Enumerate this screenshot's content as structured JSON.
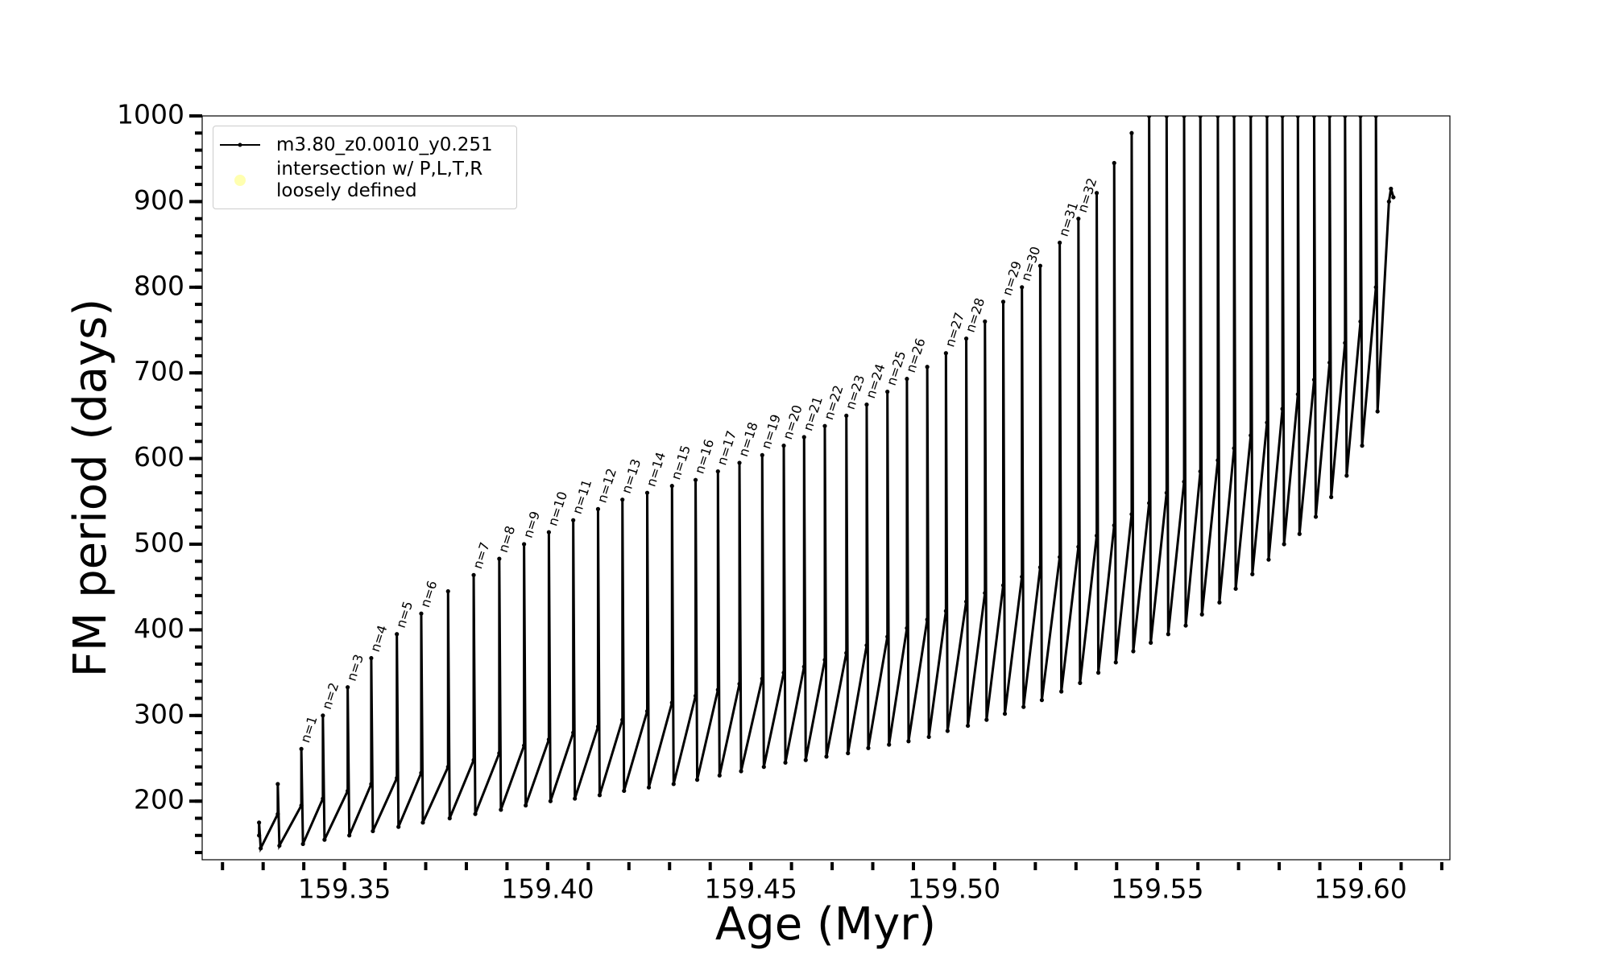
{
  "chart_data": {
    "type": "line",
    "xlabel": "Age (Myr)",
    "ylabel": "FM period (days)",
    "xlim": [
      159.315,
      159.622
    ],
    "ylim": [
      131.6,
      1000
    ],
    "xticks": [
      {
        "value": 159.35,
        "label": "159.35"
      },
      {
        "value": 159.4,
        "label": "159.40"
      },
      {
        "value": 159.45,
        "label": "159.45"
      },
      {
        "value": 159.5,
        "label": "159.50"
      },
      {
        "value": 159.55,
        "label": "159.55"
      },
      {
        "value": 159.6,
        "label": "159.60"
      }
    ],
    "xminorticks": [
      159.32,
      159.33,
      159.34,
      159.35,
      159.36,
      159.37,
      159.38,
      159.39,
      159.4,
      159.41,
      159.42,
      159.43,
      159.44,
      159.45,
      159.46,
      159.47,
      159.48,
      159.49,
      159.5,
      159.51,
      159.52,
      159.53,
      159.54,
      159.55,
      159.56,
      159.57,
      159.58,
      159.59,
      159.6,
      159.61,
      159.62
    ],
    "yticks": [
      200,
      300,
      400,
      500,
      600,
      700,
      800,
      900,
      1000
    ],
    "yminorticks": [
      140,
      160,
      180,
      200,
      220,
      240,
      260,
      280,
      300,
      320,
      340,
      360,
      380,
      400,
      420,
      440,
      460,
      480,
      500,
      520,
      540,
      560,
      580,
      600,
      620,
      640,
      660,
      680,
      700,
      720,
      740,
      760,
      780,
      800,
      820,
      840,
      860,
      880,
      900,
      920,
      940,
      960,
      980,
      1000
    ],
    "series": [
      {
        "name": "m3.80_z0.0010_y0.251",
        "color": "#000000",
        "marker": true,
        "x": [
          159.329,
          159.329,
          159.3294,
          159.3336,
          159.3336,
          159.334,
          159.3394,
          159.3394,
          159.3398,
          159.3447,
          159.3447,
          159.3451,
          159.3508,
          159.3508,
          159.3512,
          159.3566,
          159.3566,
          159.357,
          159.3629,
          159.3629,
          159.3633,
          159.3689,
          159.3689,
          159.3693,
          159.3755,
          159.3755,
          159.3759,
          159.3818,
          159.3818,
          159.3822,
          159.3881,
          159.3881,
          159.3885,
          159.3942,
          159.3942,
          159.3946,
          159.4003,
          159.4003,
          159.4007,
          159.4063,
          159.4063,
          159.4067,
          159.4124,
          159.4124,
          159.4128,
          159.4184,
          159.4184,
          159.4188,
          159.4245,
          159.4245,
          159.4249,
          159.4306,
          159.4306,
          159.431,
          159.4364,
          159.4364,
          159.4368,
          159.4419,
          159.4419,
          159.4423,
          159.4472,
          159.4472,
          159.4476,
          159.4528,
          159.4528,
          159.4532,
          159.4581,
          159.4581,
          159.4585,
          159.4631,
          159.4631,
          159.4635,
          159.4682,
          159.4682,
          159.4686,
          159.4735,
          159.4735,
          159.4739,
          159.4785,
          159.4785,
          159.4789,
          159.4836,
          159.4836,
          159.484,
          159.4884,
          159.4884,
          159.4888,
          159.4934,
          159.4934,
          159.4938,
          159.498,
          159.498,
          159.4984,
          159.503,
          159.503,
          159.5034,
          159.5076,
          159.5076,
          159.508,
          159.5121,
          159.5121,
          159.5125,
          159.5167,
          159.5167,
          159.5171,
          159.5212,
          159.5212,
          159.5216,
          159.526,
          159.526,
          159.5264,
          159.5306,
          159.5306,
          159.531,
          159.5351,
          159.5351,
          159.5355,
          159.5394,
          159.5394,
          159.5398,
          159.5437,
          159.5437,
          159.5441,
          159.548,
          159.548,
          159.5484,
          159.5523,
          159.5523,
          159.5527,
          159.5566,
          159.5566,
          159.557,
          159.5606,
          159.5606,
          159.561,
          159.5649,
          159.5649,
          159.5653,
          159.5689,
          159.5689,
          159.5693,
          159.573,
          159.573,
          159.5734,
          159.577,
          159.577,
          159.5774,
          159.5808,
          159.5808,
          159.5812,
          159.5846,
          159.5846,
          159.585,
          159.5886,
          159.5886,
          159.589,
          159.5924,
          159.5924,
          159.5928,
          159.5962,
          159.5962,
          159.5966,
          159.6,
          159.6,
          159.6004,
          159.6038,
          159.6038,
          159.6042,
          159.607,
          159.6075,
          159.6081
        ],
        "values": [
          160,
          175,
          145,
          185,
          220,
          148,
          195,
          261,
          150,
          203,
          300,
          155,
          212,
          333,
          160,
          220,
          367,
          165,
          227,
          395,
          170,
          233,
          419,
          175,
          240,
          445,
          180,
          248,
          464,
          185,
          256,
          483,
          190,
          265,
          500,
          195,
          272,
          514,
          200,
          280,
          528,
          203,
          287,
          541,
          207,
          295,
          552,
          212,
          305,
          560,
          216,
          315,
          568,
          220,
          323,
          575,
          225,
          330,
          585,
          230,
          337,
          595,
          235,
          343,
          604,
          240,
          350,
          615,
          245,
          357,
          625,
          248,
          365,
          638,
          252,
          373,
          650,
          256,
          382,
          663,
          262,
          392,
          678,
          266,
          402,
          693,
          270,
          412,
          707,
          275,
          422,
          723,
          282,
          433,
          740,
          288,
          443,
          760,
          295,
          452,
          783,
          302,
          462,
          800,
          310,
          473,
          825,
          318,
          485,
          852,
          328,
          497,
          880,
          338,
          510,
          910,
          350,
          522,
          945,
          362,
          535,
          980,
          375,
          548,
          1000,
          385,
          560,
          1000,
          395,
          573,
          1000,
          405,
          585,
          1000,
          418,
          598,
          1000,
          432,
          612,
          1000,
          448,
          627,
          1000,
          465,
          642,
          1000,
          482,
          658,
          1000,
          500,
          675,
          1000,
          512,
          692,
          1000,
          532,
          712,
          1000,
          555,
          735,
          1000,
          580,
          760,
          1000,
          615,
          800,
          1000,
          655,
          900,
          915,
          905
        ]
      },
      {
        "name": "intersection w/ P,L,T,R\nloosely defined",
        "color": "#ffffb0",
        "type": "scatter",
        "x": [],
        "values": []
      }
    ],
    "annotations": [
      {
        "text": "n=1",
        "x": 159.3394,
        "y": 261
      },
      {
        "text": "n=2",
        "x": 159.3447,
        "y": 300
      },
      {
        "text": "n=3",
        "x": 159.3508,
        "y": 333
      },
      {
        "text": "n=4",
        "x": 159.3566,
        "y": 367
      },
      {
        "text": "n=5",
        "x": 159.3629,
        "y": 395
      },
      {
        "text": "n=6",
        "x": 159.3689,
        "y": 419
      },
      {
        "text": "n=7",
        "x": 159.3818,
        "y": 464
      },
      {
        "text": "n=8",
        "x": 159.3881,
        "y": 483
      },
      {
        "text": "n=9",
        "x": 159.3942,
        "y": 500
      },
      {
        "text": "n=10",
        "x": 159.4003,
        "y": 514
      },
      {
        "text": "n=11",
        "x": 159.4063,
        "y": 528
      },
      {
        "text": "n=12",
        "x": 159.4124,
        "y": 541
      },
      {
        "text": "n=13",
        "x": 159.4184,
        "y": 552
      },
      {
        "text": "n=14",
        "x": 159.4245,
        "y": 560
      },
      {
        "text": "n=15",
        "x": 159.4306,
        "y": 568
      },
      {
        "text": "n=16",
        "x": 159.4364,
        "y": 575
      },
      {
        "text": "n=17",
        "x": 159.4419,
        "y": 585
      },
      {
        "text": "n=18",
        "x": 159.4472,
        "y": 595
      },
      {
        "text": "n=19",
        "x": 159.4528,
        "y": 604
      },
      {
        "text": "n=20",
        "x": 159.4581,
        "y": 615
      },
      {
        "text": "n=21",
        "x": 159.4631,
        "y": 625
      },
      {
        "text": "n=22",
        "x": 159.4682,
        "y": 638
      },
      {
        "text": "n=23",
        "x": 159.4735,
        "y": 650
      },
      {
        "text": "n=24",
        "x": 159.4785,
        "y": 663
      },
      {
        "text": "n=25",
        "x": 159.4836,
        "y": 678
      },
      {
        "text": "n=26",
        "x": 159.4884,
        "y": 693
      },
      {
        "text": "n=27",
        "x": 159.498,
        "y": 723
      },
      {
        "text": "n=28",
        "x": 159.503,
        "y": 740
      },
      {
        "text": "n=29",
        "x": 159.5121,
        "y": 783
      },
      {
        "text": "n=30",
        "x": 159.5167,
        "y": 800
      },
      {
        "text": "n=31",
        "x": 159.526,
        "y": 852
      },
      {
        "text": "n=32",
        "x": 159.5306,
        "y": 880
      }
    ]
  }
}
